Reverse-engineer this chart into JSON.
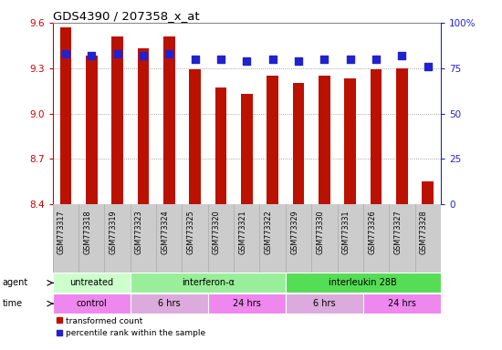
{
  "title": "GDS4390 / 207358_x_at",
  "samples": [
    "GSM773317",
    "GSM773318",
    "GSM773319",
    "GSM773323",
    "GSM773324",
    "GSM773325",
    "GSM773320",
    "GSM773321",
    "GSM773322",
    "GSM773329",
    "GSM773330",
    "GSM773331",
    "GSM773326",
    "GSM773327",
    "GSM773328"
  ],
  "transformed_counts": [
    9.57,
    9.38,
    9.51,
    9.43,
    9.51,
    9.29,
    9.17,
    9.13,
    9.25,
    9.2,
    9.25,
    9.23,
    9.29,
    9.3,
    8.55
  ],
  "percentile_ranks": [
    83,
    82,
    83,
    82,
    83,
    80,
    80,
    79,
    80,
    79,
    80,
    80,
    80,
    82,
    76
  ],
  "ylim_left": [
    8.4,
    9.6
  ],
  "ylim_right": [
    0,
    100
  ],
  "yticks_left": [
    8.4,
    8.7,
    9.0,
    9.3,
    9.6
  ],
  "yticks_right": [
    0,
    25,
    50,
    75,
    100
  ],
  "bar_color": "#bb1100",
  "dot_color": "#2222cc",
  "agent_row": [
    {
      "label": "untreated",
      "start": 0,
      "end": 3,
      "color": "#ccffcc"
    },
    {
      "label": "interferon-α",
      "start": 3,
      "end": 9,
      "color": "#99ee99"
    },
    {
      "label": "interleukin 28B",
      "start": 9,
      "end": 15,
      "color": "#55dd55"
    }
  ],
  "time_row": [
    {
      "label": "control",
      "start": 0,
      "end": 3,
      "color": "#ee88ee"
    },
    {
      "label": "6 hrs",
      "start": 3,
      "end": 6,
      "color": "#ddaadd"
    },
    {
      "label": "24 hrs",
      "start": 6,
      "end": 9,
      "color": "#ee88ee"
    },
    {
      "label": "6 hrs",
      "start": 9,
      "end": 12,
      "color": "#ddaadd"
    },
    {
      "label": "24 hrs",
      "start": 12,
      "end": 15,
      "color": "#ee88ee"
    }
  ],
  "legend_items": [
    {
      "label": "transformed count",
      "color": "#bb1100"
    },
    {
      "label": "percentile rank within the sample",
      "color": "#2222cc"
    }
  ],
  "left_axis_color": "#cc0000",
  "right_axis_color": "#2222cc",
  "bar_width": 0.45,
  "dot_size": 28,
  "background_color": "#ffffff",
  "grid_color": "#888888",
  "xlabels_bg": "#cccccc",
  "separator_color": "#aaaaaa"
}
